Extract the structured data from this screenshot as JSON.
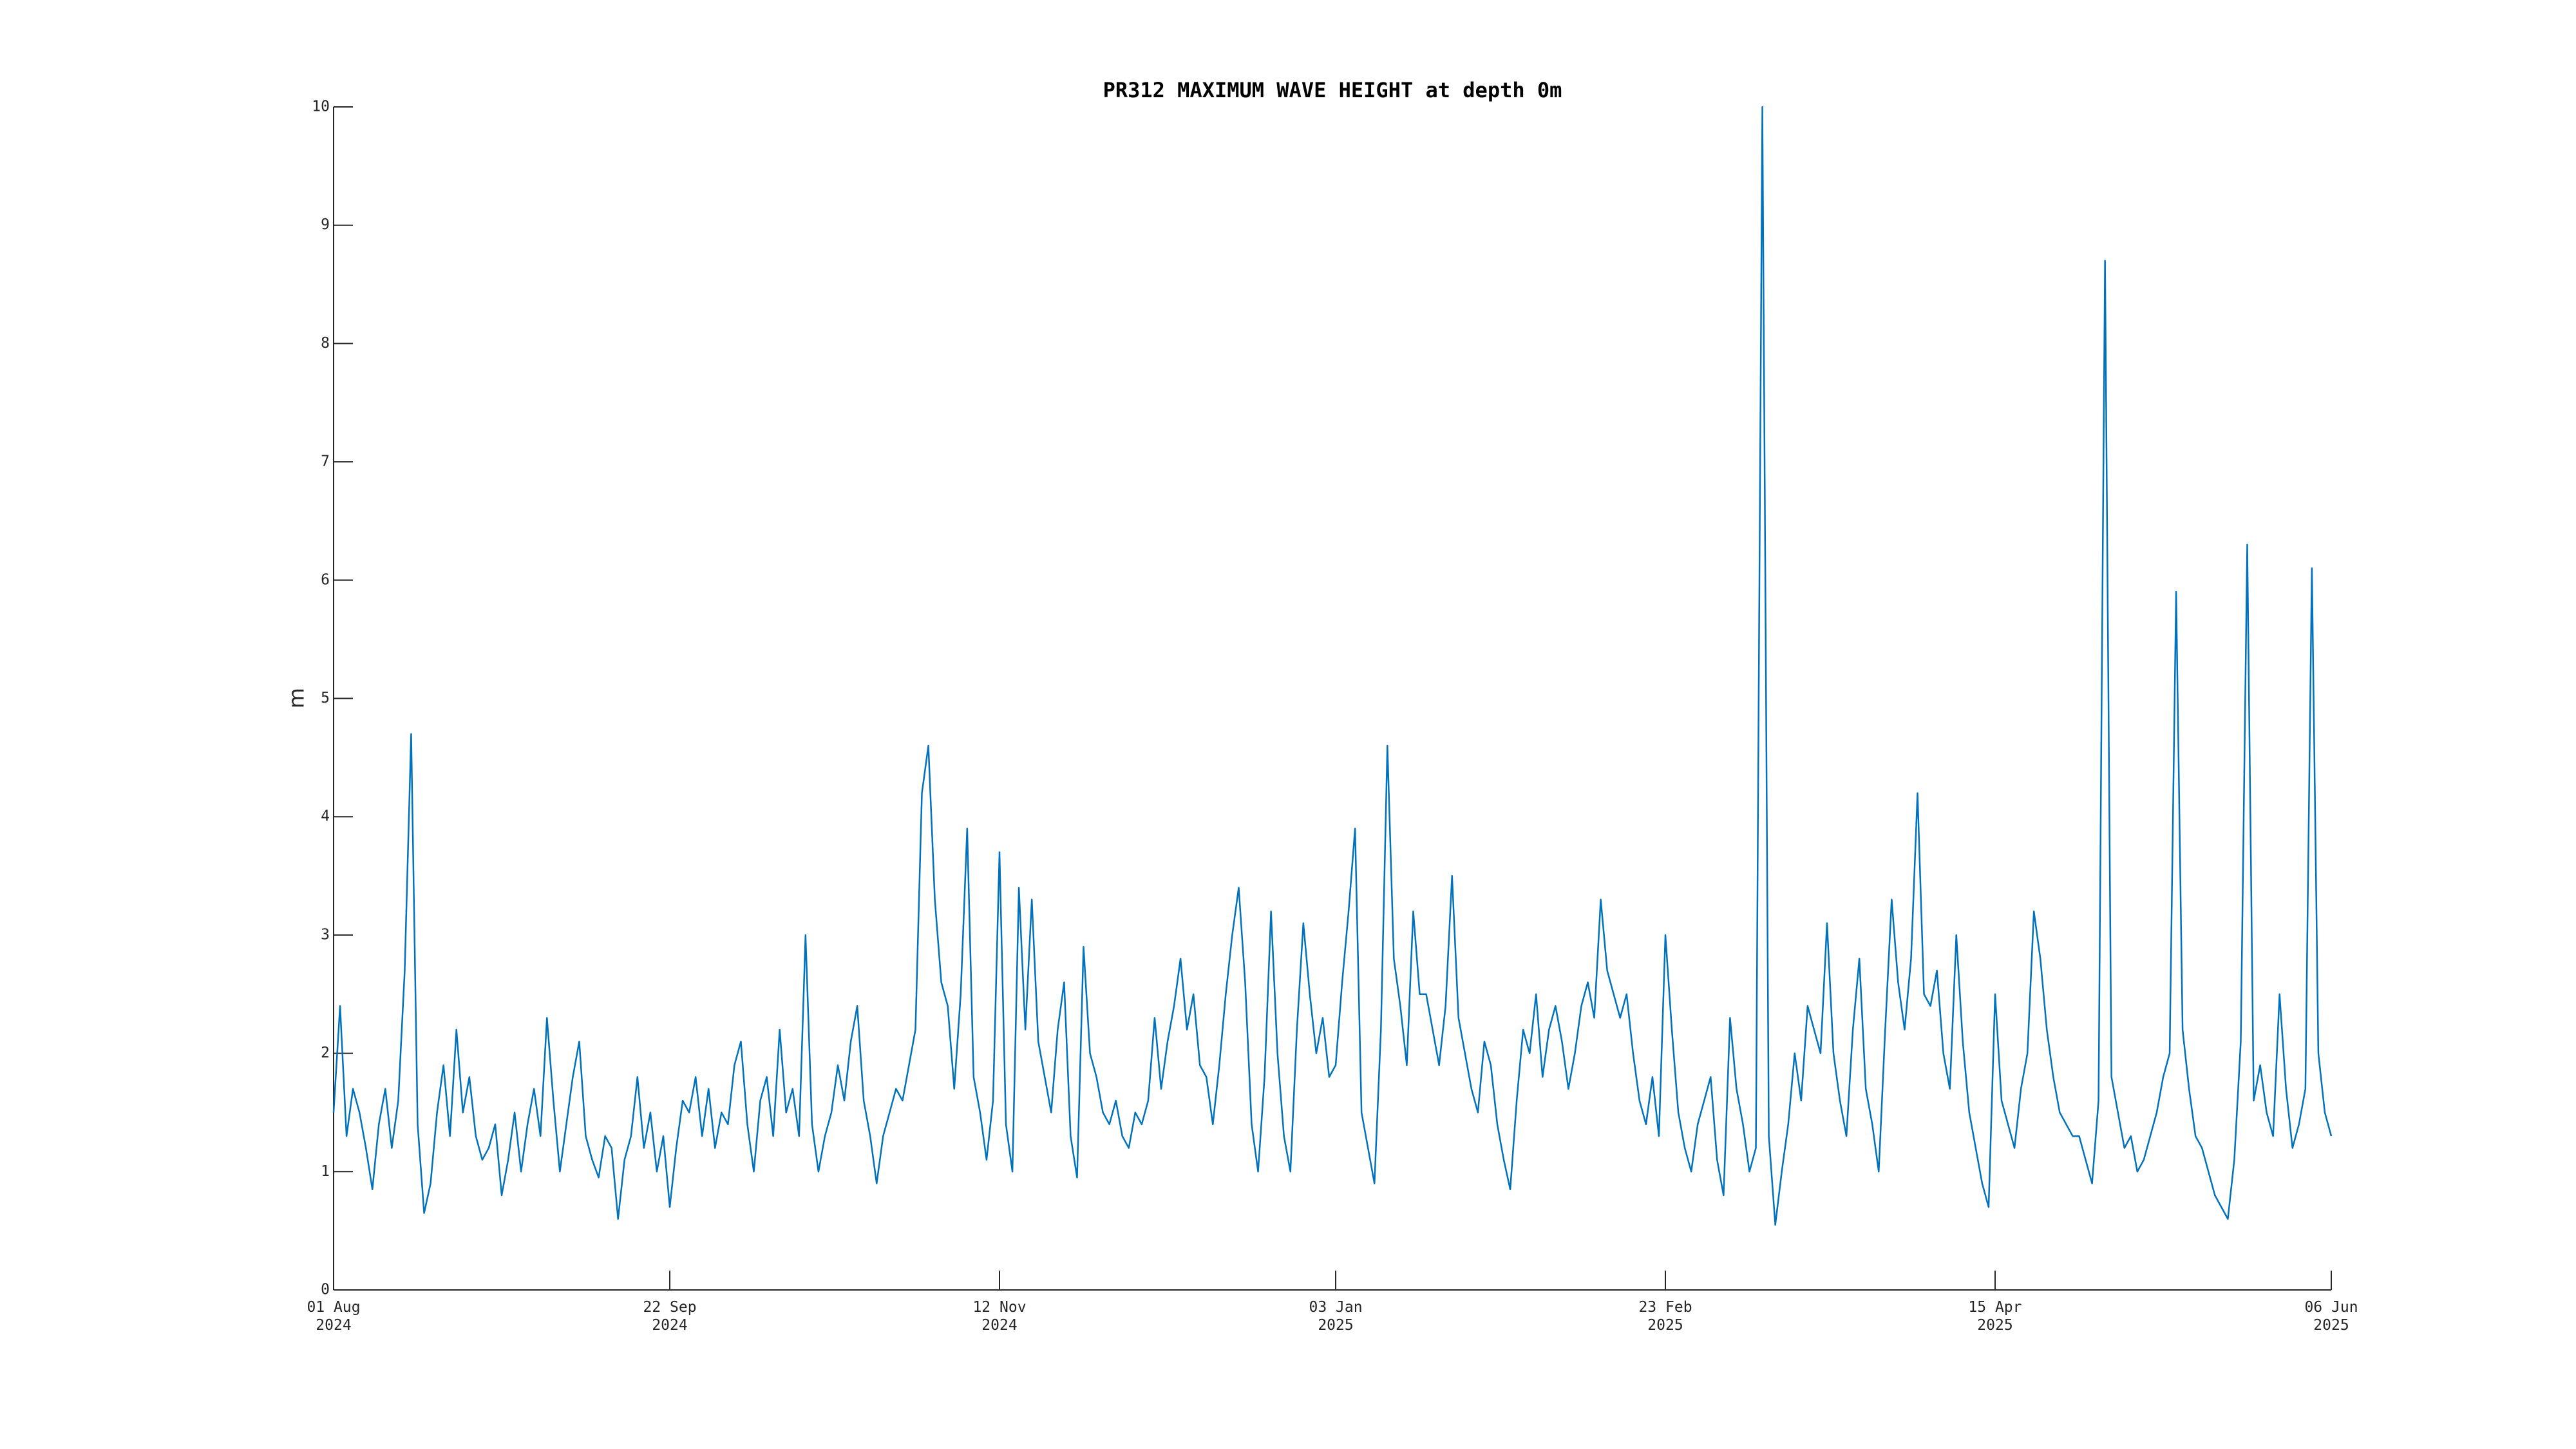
{
  "chart_data": {
    "type": "line",
    "title": "PR312 MAXIMUM WAVE HEIGHT at depth 0m",
    "ylabel": "m",
    "color": "#0072bd",
    "xlim": [
      "2024-08-01",
      "2025-06-06"
    ],
    "xticks": [
      {
        "value": "2024-08-01",
        "label": "01 Aug\n2024"
      },
      {
        "value": "2024-09-22",
        "label": "22 Sep\n2024"
      },
      {
        "value": "2024-11-12",
        "label": "12 Nov\n2024"
      },
      {
        "value": "2025-01-03",
        "label": "03 Jan\n2025"
      },
      {
        "value": "2025-02-23",
        "label": "23 Feb\n2025"
      },
      {
        "value": "2025-04-15",
        "label": "15 Apr\n2025"
      },
      {
        "value": "2025-06-06",
        "label": "06 Jun\n2025"
      }
    ],
    "ylim": [
      0,
      10
    ],
    "yticks": [
      0,
      1,
      2,
      3,
      4,
      5,
      6,
      7,
      8,
      9,
      10
    ],
    "x": [
      "2024-08-01",
      "2024-08-02",
      "2024-08-03",
      "2024-08-04",
      "2024-08-05",
      "2024-08-06",
      "2024-08-07",
      "2024-08-08",
      "2024-08-09",
      "2024-08-10",
      "2024-08-11",
      "2024-08-12",
      "2024-08-13",
      "2024-08-14",
      "2024-08-15",
      "2024-08-16",
      "2024-08-17",
      "2024-08-18",
      "2024-08-19",
      "2024-08-20",
      "2024-08-21",
      "2024-08-22",
      "2024-08-23",
      "2024-08-24",
      "2024-08-25",
      "2024-08-26",
      "2024-08-27",
      "2024-08-28",
      "2024-08-29",
      "2024-08-30",
      "2024-08-31",
      "2024-09-01",
      "2024-09-02",
      "2024-09-03",
      "2024-09-04",
      "2024-09-05",
      "2024-09-06",
      "2024-09-07",
      "2024-09-08",
      "2024-09-09",
      "2024-09-10",
      "2024-09-11",
      "2024-09-12",
      "2024-09-13",
      "2024-09-14",
      "2024-09-15",
      "2024-09-16",
      "2024-09-17",
      "2024-09-18",
      "2024-09-19",
      "2024-09-20",
      "2024-09-21",
      "2024-09-22",
      "2024-09-23",
      "2024-09-24",
      "2024-09-25",
      "2024-09-26",
      "2024-09-27",
      "2024-09-28",
      "2024-09-29",
      "2024-09-30",
      "2024-10-01",
      "2024-10-02",
      "2024-10-03",
      "2024-10-04",
      "2024-10-05",
      "2024-10-06",
      "2024-10-07",
      "2024-10-08",
      "2024-10-09",
      "2024-10-10",
      "2024-10-11",
      "2024-10-12",
      "2024-10-13",
      "2024-10-14",
      "2024-10-15",
      "2024-10-16",
      "2024-10-17",
      "2024-10-18",
      "2024-10-19",
      "2024-10-20",
      "2024-10-21",
      "2024-10-22",
      "2024-10-23",
      "2024-10-24",
      "2024-10-25",
      "2024-10-26",
      "2024-10-27",
      "2024-10-28",
      "2024-10-29",
      "2024-10-30",
      "2024-10-31",
      "2024-11-01",
      "2024-11-02",
      "2024-11-03",
      "2024-11-04",
      "2024-11-05",
      "2024-11-06",
      "2024-11-07",
      "2024-11-08",
      "2024-11-09",
      "2024-11-10",
      "2024-11-11",
      "2024-11-12",
      "2024-11-13",
      "2024-11-14",
      "2024-11-15",
      "2024-11-16",
      "2024-11-17",
      "2024-11-18",
      "2024-11-19",
      "2024-11-20",
      "2024-11-21",
      "2024-11-22",
      "2024-11-23",
      "2024-11-24",
      "2024-11-25",
      "2024-11-26",
      "2024-11-27",
      "2024-11-28",
      "2024-11-29",
      "2024-11-30",
      "2024-12-01",
      "2024-12-02",
      "2024-12-03",
      "2024-12-04",
      "2024-12-05",
      "2024-12-06",
      "2024-12-07",
      "2024-12-08",
      "2024-12-09",
      "2024-12-10",
      "2024-12-11",
      "2024-12-12",
      "2024-12-13",
      "2024-12-14",
      "2024-12-15",
      "2024-12-16",
      "2024-12-17",
      "2024-12-18",
      "2024-12-19",
      "2024-12-20",
      "2024-12-21",
      "2024-12-22",
      "2024-12-23",
      "2024-12-24",
      "2024-12-25",
      "2024-12-26",
      "2024-12-27",
      "2024-12-28",
      "2024-12-29",
      "2024-12-30",
      "2024-12-31",
      "2025-01-01",
      "2025-01-02",
      "2025-01-03",
      "2025-01-04",
      "2025-01-05",
      "2025-01-06",
      "2025-01-07",
      "2025-01-08",
      "2025-01-09",
      "2025-01-10",
      "2025-01-11",
      "2025-01-12",
      "2025-01-13",
      "2025-01-14",
      "2025-01-15",
      "2025-01-16",
      "2025-01-17",
      "2025-01-18",
      "2025-01-19",
      "2025-01-20",
      "2025-01-21",
      "2025-01-22",
      "2025-01-23",
      "2025-01-24",
      "2025-01-25",
      "2025-01-26",
      "2025-01-27",
      "2025-01-28",
      "2025-01-29",
      "2025-01-30",
      "2025-01-31",
      "2025-02-01",
      "2025-02-02",
      "2025-02-03",
      "2025-02-04",
      "2025-02-05",
      "2025-02-06",
      "2025-02-07",
      "2025-02-08",
      "2025-02-09",
      "2025-02-10",
      "2025-02-11",
      "2025-02-12",
      "2025-02-13",
      "2025-02-14",
      "2025-02-15",
      "2025-02-16",
      "2025-02-17",
      "2025-02-18",
      "2025-02-19",
      "2025-02-20",
      "2025-02-21",
      "2025-02-22",
      "2025-02-23",
      "2025-02-24",
      "2025-02-25",
      "2025-02-26",
      "2025-02-27",
      "2025-02-28",
      "2025-03-01",
      "2025-03-02",
      "2025-03-03",
      "2025-03-04",
      "2025-03-05",
      "2025-03-06",
      "2025-03-07",
      "2025-03-08",
      "2025-03-09",
      "2025-03-10",
      "2025-03-11",
      "2025-03-12",
      "2025-03-13",
      "2025-03-14",
      "2025-03-15",
      "2025-03-16",
      "2025-03-17",
      "2025-03-18",
      "2025-03-19",
      "2025-03-20",
      "2025-03-21",
      "2025-03-22",
      "2025-03-23",
      "2025-03-24",
      "2025-03-25",
      "2025-03-26",
      "2025-03-27",
      "2025-03-28",
      "2025-03-29",
      "2025-03-30",
      "2025-03-31",
      "2025-04-01",
      "2025-04-02",
      "2025-04-03",
      "2025-04-04",
      "2025-04-05",
      "2025-04-06",
      "2025-04-07",
      "2025-04-08",
      "2025-04-09",
      "2025-04-10",
      "2025-04-11",
      "2025-04-12",
      "2025-04-13",
      "2025-04-14",
      "2025-04-15",
      "2025-04-16",
      "2025-04-17",
      "2025-04-18",
      "2025-04-19",
      "2025-04-20",
      "2025-04-21",
      "2025-04-22",
      "2025-04-23",
      "2025-04-24",
      "2025-04-25",
      "2025-04-26",
      "2025-04-27",
      "2025-04-28",
      "2025-04-29",
      "2025-04-30",
      "2025-05-01",
      "2025-05-02",
      "2025-05-03",
      "2025-05-04",
      "2025-05-05",
      "2025-05-06",
      "2025-05-07",
      "2025-05-08",
      "2025-05-09",
      "2025-05-10",
      "2025-05-11",
      "2025-05-12",
      "2025-05-13",
      "2025-05-14",
      "2025-05-15",
      "2025-05-16",
      "2025-05-17",
      "2025-05-18",
      "2025-05-19",
      "2025-05-20",
      "2025-05-21",
      "2025-05-22",
      "2025-05-23",
      "2025-05-24",
      "2025-05-25",
      "2025-05-26",
      "2025-05-27",
      "2025-05-28",
      "2025-05-29",
      "2025-05-30",
      "2025-05-31",
      "2025-06-01",
      "2025-06-02",
      "2025-06-03",
      "2025-06-04",
      "2025-06-05",
      "2025-06-06"
    ],
    "values": [
      1.5,
      2.4,
      1.3,
      1.7,
      1.5,
      1.2,
      0.85,
      1.4,
      1.7,
      1.2,
      1.6,
      2.7,
      4.7,
      1.4,
      0.65,
      0.9,
      1.5,
      1.9,
      1.3,
      2.2,
      1.5,
      1.8,
      1.3,
      1.1,
      1.2,
      1.4,
      0.8,
      1.1,
      1.5,
      1.0,
      1.4,
      1.7,
      1.3,
      2.3,
      1.6,
      1.0,
      1.4,
      1.8,
      2.1,
      1.3,
      1.1,
      0.95,
      1.3,
      1.2,
      0.6,
      1.1,
      1.3,
      1.8,
      1.2,
      1.5,
      1.0,
      1.3,
      0.7,
      1.2,
      1.6,
      1.5,
      1.8,
      1.3,
      1.7,
      1.2,
      1.5,
      1.4,
      1.9,
      2.1,
      1.4,
      1.0,
      1.6,
      1.8,
      1.3,
      2.2,
      1.5,
      1.7,
      1.3,
      3.0,
      1.4,
      1.0,
      1.3,
      1.5,
      1.9,
      1.6,
      2.1,
      2.4,
      1.6,
      1.3,
      0.9,
      1.3,
      1.5,
      1.7,
      1.6,
      1.9,
      2.2,
      4.2,
      4.6,
      3.3,
      2.6,
      2.4,
      1.7,
      2.5,
      3.9,
      1.8,
      1.5,
      1.1,
      1.6,
      3.7,
      1.4,
      1.0,
      3.4,
      2.2,
      3.3,
      2.1,
      1.8,
      1.5,
      2.2,
      2.6,
      1.3,
      0.95,
      2.9,
      2.0,
      1.8,
      1.5,
      1.4,
      1.6,
      1.3,
      1.2,
      1.5,
      1.4,
      1.6,
      2.3,
      1.7,
      2.1,
      2.4,
      2.8,
      2.2,
      2.5,
      1.9,
      1.8,
      1.4,
      1.9,
      2.5,
      3.0,
      3.4,
      2.6,
      1.4,
      1.0,
      1.8,
      3.2,
      2.0,
      1.3,
      1.0,
      2.2,
      3.1,
      2.5,
      2.0,
      2.3,
      1.8,
      1.9,
      2.6,
      3.2,
      3.9,
      1.5,
      1.2,
      0.9,
      2.2,
      4.6,
      2.8,
      2.4,
      1.9,
      3.2,
      2.5,
      2.5,
      2.2,
      1.9,
      2.4,
      3.5,
      2.3,
      2.0,
      1.7,
      1.5,
      2.1,
      1.9,
      1.4,
      1.1,
      0.85,
      1.6,
      2.2,
      2.0,
      2.5,
      1.8,
      2.2,
      2.4,
      2.1,
      1.7,
      2.0,
      2.4,
      2.6,
      2.3,
      3.3,
      2.7,
      2.5,
      2.3,
      2.5,
      2.0,
      1.6,
      1.4,
      1.8,
      1.3,
      3.0,
      2.2,
      1.5,
      1.2,
      1.0,
      1.4,
      1.6,
      1.8,
      1.1,
      0.8,
      2.3,
      1.7,
      1.4,
      1.0,
      1.2,
      10.0,
      1.3,
      0.55,
      1.0,
      1.4,
      2.0,
      1.6,
      2.4,
      2.2,
      2.0,
      3.1,
      2.0,
      1.6,
      1.3,
      2.2,
      2.8,
      1.7,
      1.4,
      1.0,
      2.2,
      3.3,
      2.6,
      2.2,
      2.8,
      4.2,
      2.5,
      2.4,
      2.7,
      2.0,
      1.7,
      3.0,
      2.1,
      1.5,
      1.2,
      0.9,
      0.7,
      2.5,
      1.6,
      1.4,
      1.2,
      1.7,
      2.0,
      3.2,
      2.8,
      2.2,
      1.8,
      1.5,
      1.4,
      1.3,
      1.3,
      1.1,
      0.9,
      1.6,
      8.7,
      1.8,
      1.5,
      1.2,
      1.3,
      1.0,
      1.1,
      1.3,
      1.5,
      1.8,
      2.0,
      5.9,
      2.2,
      1.7,
      1.3,
      1.2,
      1.0,
      0.8,
      0.7,
      0.6,
      1.1,
      2.1,
      6.3,
      1.6,
      1.9,
      1.5,
      1.3,
      2.5,
      1.7,
      1.2,
      1.4,
      1.7,
      6.1,
      2.0,
      1.5,
      1.3
    ]
  }
}
